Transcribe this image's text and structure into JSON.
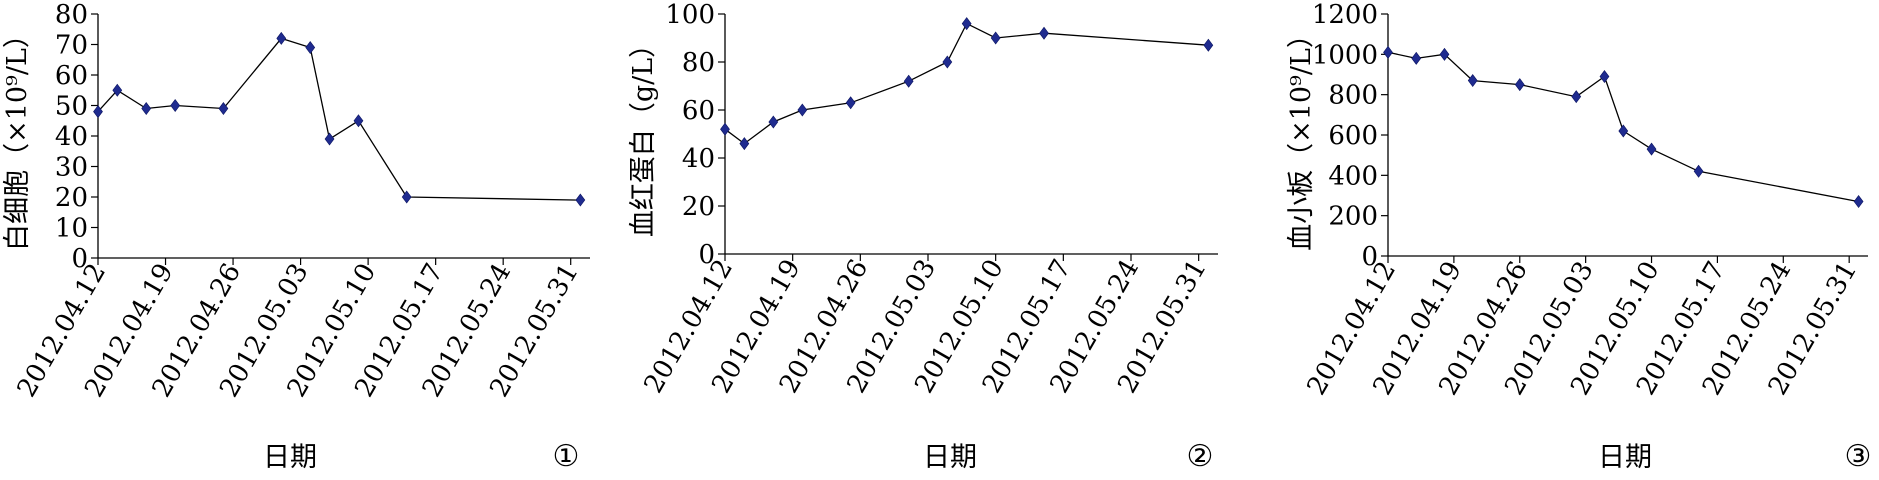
{
  "chart_data": [
    {
      "type": "line",
      "ylabel": "白细胞（×10⁹/L）",
      "xlabel": "日期",
      "panel_label": "①",
      "ylim": [
        0,
        80
      ],
      "yticks": [
        0,
        10,
        20,
        30,
        40,
        50,
        60,
        70,
        80
      ],
      "x_ticks": [
        "2012.04.12",
        "2012.04.19",
        "2012.04.26",
        "2012.05.03",
        "2012.05.10",
        "2012.05.17",
        "2012.05.24",
        "2012.05.31"
      ],
      "x": [
        "2012-04-12",
        "2012-04-14",
        "2012-04-17",
        "2012-04-20",
        "2012-04-25",
        "2012-05-01",
        "2012-05-04",
        "2012-05-06",
        "2012-05-09",
        "2012-05-14",
        "2012-06-01"
      ],
      "values": [
        48,
        55,
        49,
        50,
        49,
        72,
        69,
        39,
        45,
        20,
        19
      ],
      "grid": false,
      "line_color": "#000000",
      "marker_color": "#1f2b8f"
    },
    {
      "type": "line",
      "ylabel": "血红蛋白（g/L）",
      "xlabel": "日期",
      "panel_label": "②",
      "ylim": [
        0,
        100
      ],
      "yticks": [
        0,
        20,
        40,
        60,
        80,
        100
      ],
      "x_ticks": [
        "2012.04.12",
        "2012.04.19",
        "2012.04.26",
        "2012.05.03",
        "2012.05.10",
        "2012.05.17",
        "2012.05.24",
        "2012.05.31"
      ],
      "x": [
        "2012-04-12",
        "2012-04-14",
        "2012-04-17",
        "2012-04-20",
        "2012-04-25",
        "2012-05-01",
        "2012-05-05",
        "2012-05-07",
        "2012-05-10",
        "2012-05-15",
        "2012-06-01"
      ],
      "values": [
        52,
        46,
        55,
        60,
        63,
        72,
        80,
        96,
        90,
        92,
        87
      ],
      "grid": false,
      "line_color": "#000000",
      "marker_color": "#1f2b8f"
    },
    {
      "type": "line",
      "ylabel": "血小板（×10⁹/L）",
      "xlabel": "日期",
      "panel_label": "③",
      "ylim": [
        0,
        1200
      ],
      "yticks": [
        0,
        200,
        400,
        600,
        800,
        1000,
        1200
      ],
      "x_ticks": [
        "2012.04.12",
        "2012.04.19",
        "2012.04.26",
        "2012.05.03",
        "2012.05.10",
        "2012.05.17",
        "2012.05.24",
        "2012.05.31"
      ],
      "x": [
        "2012-04-12",
        "2012-04-15",
        "2012-04-18",
        "2012-04-21",
        "2012-04-26",
        "2012-05-02",
        "2012-05-05",
        "2012-05-07",
        "2012-05-10",
        "2012-05-15",
        "2012-06-01"
      ],
      "values": [
        1010,
        980,
        1000,
        870,
        850,
        790,
        890,
        620,
        530,
        420,
        270
      ],
      "grid": false,
      "line_color": "#000000",
      "marker_color": "#1f2b8f"
    }
  ]
}
